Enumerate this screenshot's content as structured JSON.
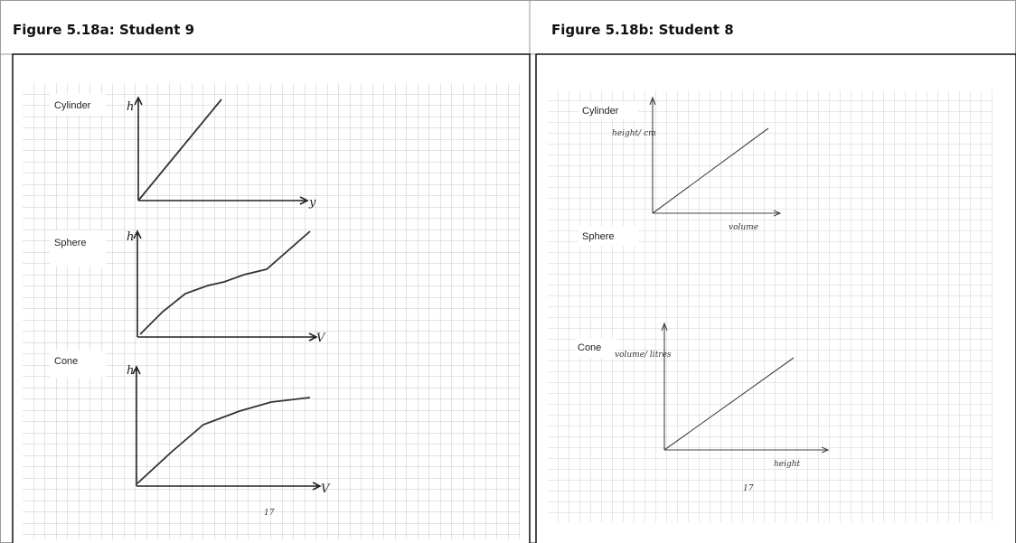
{
  "figures": [
    {
      "caption": "Figure 5.18a: Student 9",
      "page_number": "17",
      "graphs": [
        {
          "label": "Cylinder",
          "y_axis": "h",
          "x_axis": "y"
        },
        {
          "label": "Sphere",
          "y_axis": "h",
          "x_axis": "V"
        },
        {
          "label": "Cone",
          "y_axis": "h",
          "x_axis": "V"
        }
      ]
    },
    {
      "caption": "Figure 5.18b: Student 8",
      "page_number": "17",
      "graphs": [
        {
          "label": "Cylinder",
          "y_axis": "height/ cm",
          "x_axis": "volume"
        },
        {
          "label": "Sphere"
        },
        {
          "label": "Cone",
          "y_axis": "volume/ litres",
          "x_axis": "height"
        }
      ]
    }
  ]
}
